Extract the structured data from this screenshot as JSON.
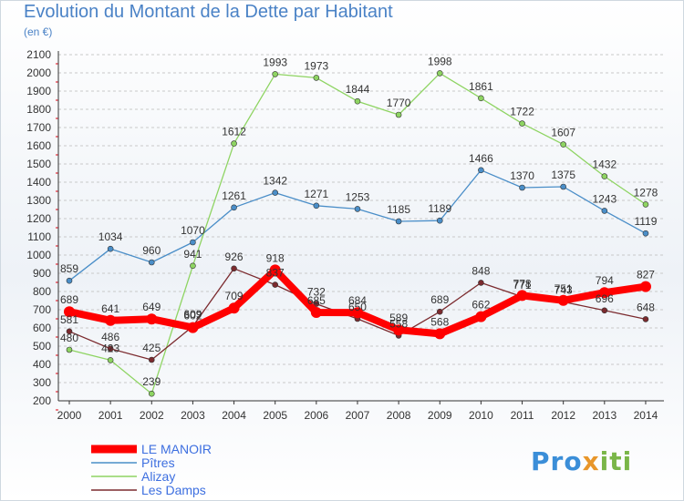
{
  "header": {
    "title": "Evolution du Montant de la Dette par Habitant",
    "subtitle": "(en €)"
  },
  "brand": {
    "parts": [
      "Pro",
      "x",
      "iti"
    ]
  },
  "colors": {
    "title": "#4a82c6",
    "axis": "#333333",
    "grid": "#c9c9c9",
    "axis_tick_red": "#e0000f"
  },
  "chart_data": {
    "type": "line",
    "title": "Evolution du Montant de la Dette par Habitant",
    "subtitle": "(en €)",
    "x": [
      "2000",
      "2001",
      "2002",
      "2003",
      "2004",
      "2005",
      "2006",
      "2007",
      "2008",
      "2009",
      "2010",
      "2011",
      "2012",
      "2013",
      "2014"
    ],
    "ylim": [
      200,
      2100
    ],
    "yticks": [
      200,
      300,
      400,
      500,
      600,
      700,
      800,
      900,
      1000,
      1100,
      1200,
      1300,
      1400,
      1500,
      1600,
      1700,
      1800,
      1900,
      2000,
      2100
    ],
    "grid": "horizontal dashed",
    "legend_position": "bottom-left",
    "series": [
      {
        "name": "LE MANOIR",
        "color": "#ff0000",
        "width": 8,
        "marker": 6,
        "values": [
          689,
          641,
          649,
          602,
          709,
          918,
          685,
          684,
          589,
          568,
          662,
          778,
          751,
          794,
          827
        ],
        "labels": [
          "689",
          "641",
          "649",
          "602",
          "709",
          "918",
          "685",
          "684",
          "589",
          "568",
          "662",
          "778",
          "751",
          "794",
          "827"
        ]
      },
      {
        "name": "Pîtres",
        "color": "#4a8ec8",
        "width": 1.3,
        "marker": 3,
        "values": [
          859,
          1034,
          960,
          1070,
          1261,
          1342,
          1271,
          1253,
          1185,
          1189,
          1466,
          1370,
          1375,
          1243,
          1119
        ],
        "labels": [
          "859",
          "1034",
          "960",
          "1070",
          "1261",
          "1342",
          "1271",
          "1253",
          "1185",
          "1189",
          "1466",
          "1370",
          "1375",
          "1243",
          "1119"
        ]
      },
      {
        "name": "Alizay",
        "color": "#8ed462",
        "width": 1.3,
        "marker": 3,
        "values": [
          480,
          423,
          239,
          941,
          1612,
          1993,
          1973,
          1844,
          1770,
          1998,
          1861,
          1722,
          1607,
          1432,
          1278
        ],
        "labels": [
          "480",
          "423",
          "239",
          "941",
          "1612",
          "1993",
          "1973",
          "1844",
          "1770",
          "1998",
          "1861",
          "1722",
          "1607",
          "1432",
          "1278"
        ]
      },
      {
        "name": "Les Damps",
        "color": "#7b2a2e",
        "width": 1.3,
        "marker": 3,
        "values": [
          581,
          486,
          425,
          609,
          926,
          837,
          732,
          650,
          558,
          689,
          848,
          771,
          743,
          696,
          648
        ],
        "labels": [
          "581",
          "486",
          "425",
          "609",
          "926",
          "837",
          "732",
          "650",
          "558",
          "689",
          "848",
          "771",
          "743",
          "696",
          "648"
        ]
      }
    ]
  }
}
